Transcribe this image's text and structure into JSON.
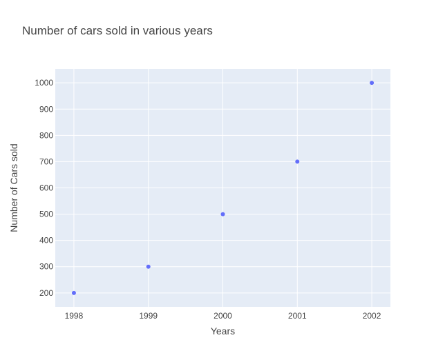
{
  "chart_data": {
    "type": "scatter",
    "title": "Number of cars sold in various years",
    "xlabel": "Years",
    "ylabel": "Number of Cars sold",
    "x": [
      1998,
      1999,
      2000,
      2001,
      2002
    ],
    "y": [
      200,
      300,
      500,
      700,
      1000
    ],
    "xlim": [
      1997.75,
      2002.25
    ],
    "ylim": [
      147,
      1053
    ],
    "xticks": [
      1998,
      1999,
      2000,
      2001,
      2002
    ],
    "yticks": [
      200,
      300,
      400,
      500,
      600,
      700,
      800,
      900,
      1000
    ],
    "grid": true,
    "legend": "none",
    "colors": {
      "plot_background": "#e5ecf6",
      "grid": "#ffffff",
      "marker": "#636efa",
      "text": "#444444"
    }
  }
}
